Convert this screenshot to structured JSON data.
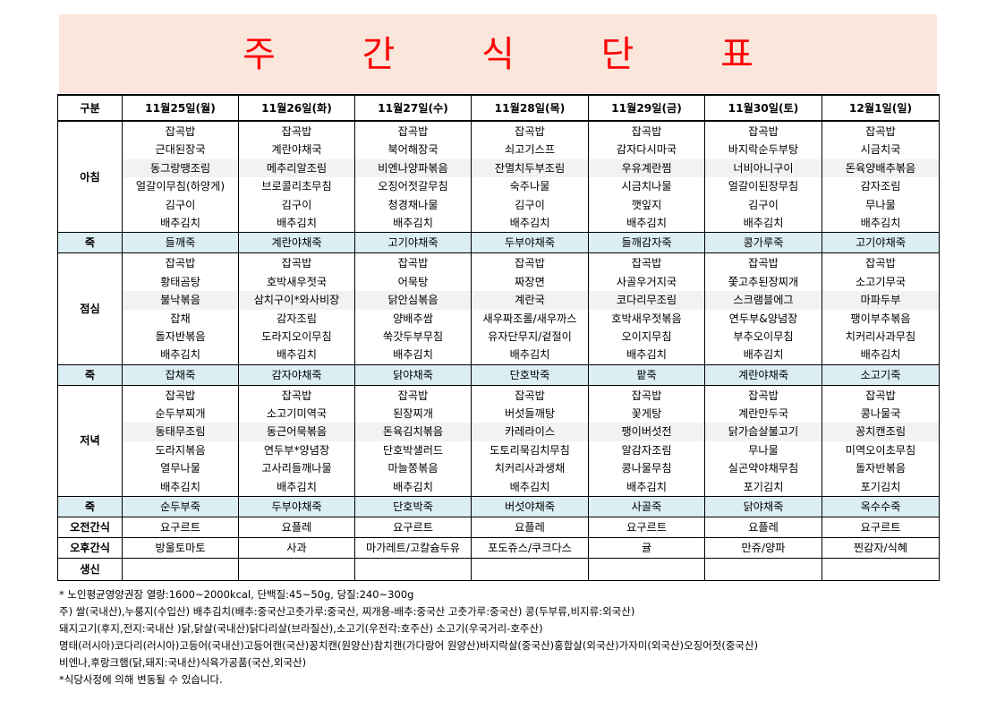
{
  "title": "주 간 식 단 표",
  "header_label": "구분",
  "days": [
    "11월25일(월)",
    "11월26일(화)",
    "11월27일(수)",
    "11월28일(목)",
    "11월29일(금)",
    "11월30일(토)",
    "12월1일(일)"
  ],
  "breakfast": {
    "label": "아침",
    "items": [
      [
        "잡곡밥",
        "근대된장국",
        "동그랑땡조림",
        "얼갈이무침(하양게)",
        "김구이",
        "배추김치"
      ],
      [
        "잡곡밥",
        "계란야채국",
        "메추리알조림",
        "브로콜리초무침",
        "김구이",
        "배추김치"
      ],
      [
        "잡곡밥",
        "북어해장국",
        "비엔나양파볶음",
        "오징어젓갈무침",
        "청경채나물",
        "배추김치"
      ],
      [
        "잡곡밥",
        "쇠고기스프",
        "잔멸치두부조림",
        "숙주나물",
        "김구이",
        "배추김치"
      ],
      [
        "잡곡밥",
        "감자다시마국",
        "우유계란찜",
        "시금치나물",
        "깻잎지",
        "배추김치"
      ],
      [
        "잡곡밥",
        "바지락순두부탕",
        "너비아니구이",
        "얼갈이된장무침",
        "김구이",
        "배추김치"
      ],
      [
        "잡곡밥",
        "시금치국",
        "돈육양배추볶음",
        "감자조림",
        "무나물",
        "배추김치"
      ]
    ],
    "porridge_label": "죽",
    "porridge": [
      "들깨죽",
      "계란야채죽",
      "고기야채죽",
      "두부야채죽",
      "들깨감자죽",
      "콩가루죽",
      "고기야채죽"
    ]
  },
  "lunch": {
    "label": "점심",
    "items": [
      [
        "잡곡밥",
        "황태곰탕",
        "불낙볶음",
        "잡채",
        "돌자반볶음",
        "배추김치"
      ],
      [
        "잡곡밥",
        "호박새우젓국",
        "삼치구이*와사비장",
        "감자조림",
        "도라지오이무침",
        "배추김치"
      ],
      [
        "잡곡밥",
        "어묵탕",
        "닭안심볶음",
        "양배추쌈",
        "쑥갓두부무침",
        "배추김치"
      ],
      [
        "잡곡밥",
        "짜장면",
        "계란국",
        "새우짜조롤/새우까스",
        "유자단무지/겉절이",
        "배추김치"
      ],
      [
        "잡곡밥",
        "사골우거지국",
        "코다리무조림",
        "호박새우젓볶음",
        "오이지무침",
        "배추김치"
      ],
      [
        "잡곡밥",
        "쫓고추된장찌개",
        "스크램블에그",
        "연두부&양념장",
        "부추오이무침",
        "배추김치"
      ],
      [
        "잡곡밥",
        "소고기무국",
        "마파두부",
        "팽이부추볶음",
        "치커리사과무침",
        "배추김치"
      ]
    ],
    "porridge_label": "죽",
    "porridge": [
      "잡채죽",
      "감자야채죽",
      "닭야채죽",
      "단호박죽",
      "팥죽",
      "계란야채죽",
      "소고기죽"
    ]
  },
  "dinner": {
    "label": "저녁",
    "items": [
      [
        "잡곡밥",
        "순두부찌개",
        "동태무조림",
        "도라지볶음",
        "열무나물",
        "배추김치"
      ],
      [
        "잡곡밥",
        "소고기미역국",
        "동근어묵볶음",
        "연두부*양념장",
        "고사리들깨나물",
        "배추김치"
      ],
      [
        "잡곡밥",
        "된장찌개",
        "돈육김치볶음",
        "단호박샐러드",
        "마늘쫑볶음",
        "배추김치"
      ],
      [
        "잡곡밥",
        "버섯들깨탕",
        "카레라이스",
        "도토리묵김치무침",
        "치커리사과생채",
        "배추김치"
      ],
      [
        "잡곡밥",
        "꽃게탕",
        "팽이버섯전",
        "알감자조림",
        "콩나물무침",
        "배추김치"
      ],
      [
        "잡곡밥",
        "계란만두국",
        "닭가슴살불고기",
        "무나물",
        "실곤약야채무침",
        "포기김치"
      ],
      [
        "잡곡밥",
        "콩나물국",
        "꽁치캔조림",
        "미역오이초무침",
        "돌자반볶음",
        "포기김치"
      ]
    ],
    "porridge_label": "죽",
    "porridge": [
      "순두부죽",
      "두부야채죽",
      "단호박죽",
      "버섯야채죽",
      "사골죽",
      "닭야채죽",
      "옥수수죽"
    ]
  },
  "am_snack": {
    "label": "오전간식",
    "items": [
      "요구르트",
      "요플레",
      "요구르트",
      "요플레",
      "요구르트",
      "요플레",
      "요구르트"
    ]
  },
  "pm_snack": {
    "label": "오후간식",
    "items": [
      "방울토마토",
      "사과",
      "마가레트/고칼슘두유",
      "포도쥬스/쿠크다스",
      "귤",
      "만쥬/양파",
      "찐감자/식혜"
    ]
  },
  "birthday": {
    "label": "생신",
    "items": [
      "",
      "",
      "",
      "",
      "",
      "",
      ""
    ]
  },
  "notes": [
    "* 노인평균영양권장 열량:1600~2000kcal, 단백질:45~50g, 당질:240~300g",
    "주) 쌀(국내산),누룽지(수입산) 배추김치(배추:중국산고춧가루:중국산, 찌개용-배추:중국산 고춧가루:중국산) 콩(두부류,비지류:외국산)",
    "돼지고기(후지,전지:국내산 )닭,닭살(국내산)닭다리살(브라질산),소고기(우전각:호주산) 소고기(우국거리-호주산)",
    "명태(러시아)코다리(러시아)고등어(국내산)고등어캔(국산)꽁치캔(원양산)참치캔(가다랑어 원양산)바지락살(중국산)홍합살(외국산)가자미(외국산)오징어젓(중국산)",
    "비엔나,후랑크햄(닭,돼지:국내산)식육가공품(국산,외국산)",
    "*식당사정에 의해 변동될 수 있습니다."
  ]
}
